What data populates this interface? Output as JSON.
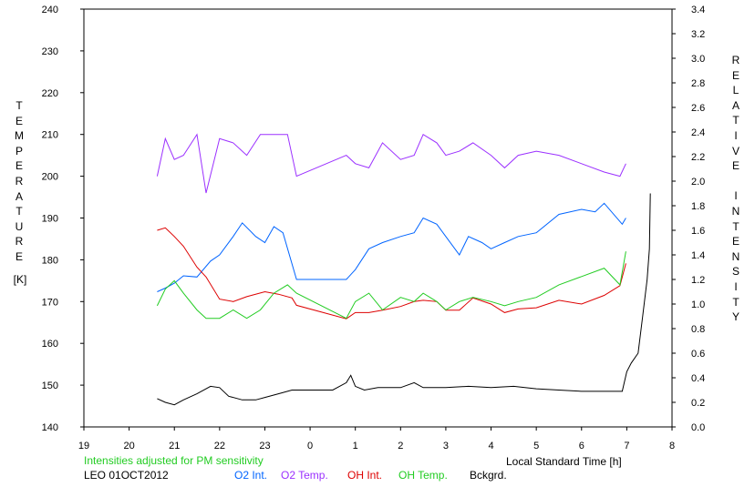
{
  "chart_data": {
    "type": "line",
    "title": "",
    "xlabel": "Local Standard Time [h]",
    "ylabel_left": "TEMPERATURE",
    "ylabel_left_unit": "[K]",
    "ylabel_right": "RELATIVE INTENSITY",
    "x_ticks": [
      "19",
      "20",
      "21",
      "22",
      "23",
      "0",
      "1",
      "2",
      "3",
      "4",
      "5",
      "6",
      "7",
      "8"
    ],
    "xlim_hours_since_19": [
      0,
      13
    ],
    "ylim_left": [
      140,
      240
    ],
    "y_ticks_left": [
      140,
      150,
      160,
      170,
      180,
      190,
      200,
      210,
      220,
      230,
      240
    ],
    "ylim_right": [
      0.0,
      3.4
    ],
    "y_ticks_right": [
      "0.0",
      "0.2",
      "0.4",
      "0.6",
      "0.8",
      "1.0",
      "1.2",
      "1.4",
      "1.6",
      "1.8",
      "2.0",
      "2.2",
      "2.4",
      "2.6",
      "2.8",
      "3.0",
      "3.2",
      "3.4"
    ],
    "series": [
      {
        "name": "O2 Int.",
        "color": "#0064ff",
        "axis": "right",
        "points": [
          [
            1.62,
            1.1
          ],
          [
            1.8,
            1.13
          ],
          [
            2.0,
            1.17
          ],
          [
            2.2,
            1.23
          ],
          [
            2.5,
            1.22
          ],
          [
            2.8,
            1.35
          ],
          [
            3.0,
            1.4
          ],
          [
            3.3,
            1.55
          ],
          [
            3.5,
            1.66
          ],
          [
            3.8,
            1.55
          ],
          [
            4.0,
            1.5
          ],
          [
            4.2,
            1.63
          ],
          [
            4.4,
            1.58
          ],
          [
            4.7,
            1.2
          ],
          [
            5.8,
            1.2
          ],
          [
            6.0,
            1.28
          ],
          [
            6.3,
            1.45
          ],
          [
            6.6,
            1.5
          ],
          [
            7.0,
            1.55
          ],
          [
            7.3,
            1.58
          ],
          [
            7.5,
            1.7
          ],
          [
            7.8,
            1.65
          ],
          [
            8.0,
            1.55
          ],
          [
            8.3,
            1.4
          ],
          [
            8.5,
            1.55
          ],
          [
            8.8,
            1.5
          ],
          [
            9.0,
            1.45
          ],
          [
            9.3,
            1.5
          ],
          [
            9.6,
            1.55
          ],
          [
            10.0,
            1.58
          ],
          [
            10.5,
            1.73
          ],
          [
            11.0,
            1.77
          ],
          [
            11.3,
            1.75
          ],
          [
            11.5,
            1.82
          ],
          [
            11.9,
            1.65
          ],
          [
            11.98,
            1.7
          ]
        ]
      },
      {
        "name": "O2 Temp.",
        "color": "#9b30ff",
        "axis": "left",
        "points": [
          [
            1.62,
            200
          ],
          [
            1.8,
            209
          ],
          [
            2.0,
            204
          ],
          [
            2.2,
            205
          ],
          [
            2.5,
            210
          ],
          [
            2.7,
            196
          ],
          [
            3.0,
            209
          ],
          [
            3.3,
            208
          ],
          [
            3.6,
            205
          ],
          [
            3.9,
            210
          ],
          [
            4.2,
            210
          ],
          [
            4.5,
            210
          ],
          [
            4.7,
            200
          ],
          [
            5.8,
            205
          ],
          [
            6.0,
            203
          ],
          [
            6.3,
            202
          ],
          [
            6.6,
            208
          ],
          [
            7.0,
            204
          ],
          [
            7.3,
            205
          ],
          [
            7.5,
            210
          ],
          [
            7.8,
            208
          ],
          [
            8.0,
            205
          ],
          [
            8.3,
            206
          ],
          [
            8.6,
            208
          ],
          [
            9.0,
            205
          ],
          [
            9.3,
            202
          ],
          [
            9.6,
            205
          ],
          [
            10.0,
            206
          ],
          [
            10.5,
            205
          ],
          [
            11.0,
            203
          ],
          [
            11.5,
            201
          ],
          [
            11.85,
            200
          ],
          [
            11.98,
            203
          ]
        ]
      },
      {
        "name": "OH Int.",
        "color": "#dd0000",
        "axis": "right",
        "points": [
          [
            1.62,
            1.6
          ],
          [
            1.8,
            1.62
          ],
          [
            2.0,
            1.55
          ],
          [
            2.2,
            1.47
          ],
          [
            2.5,
            1.3
          ],
          [
            2.7,
            1.22
          ],
          [
            3.0,
            1.04
          ],
          [
            3.3,
            1.02
          ],
          [
            3.6,
            1.06
          ],
          [
            4.0,
            1.1
          ],
          [
            4.3,
            1.08
          ],
          [
            4.6,
            1.05
          ],
          [
            4.7,
            0.99
          ],
          [
            5.8,
            0.88
          ],
          [
            6.0,
            0.93
          ],
          [
            6.3,
            0.93
          ],
          [
            6.6,
            0.95
          ],
          [
            7.0,
            0.98
          ],
          [
            7.3,
            1.02
          ],
          [
            7.5,
            1.03
          ],
          [
            7.8,
            1.02
          ],
          [
            8.0,
            0.95
          ],
          [
            8.3,
            0.95
          ],
          [
            8.6,
            1.05
          ],
          [
            9.0,
            1.0
          ],
          [
            9.3,
            0.93
          ],
          [
            9.6,
            0.96
          ],
          [
            10.0,
            0.97
          ],
          [
            10.5,
            1.03
          ],
          [
            11.0,
            1.0
          ],
          [
            11.5,
            1.07
          ],
          [
            11.85,
            1.15
          ],
          [
            11.98,
            1.33
          ]
        ]
      },
      {
        "name": "OH Temp.",
        "color": "#22cc22",
        "axis": "left",
        "points": [
          [
            1.62,
            169
          ],
          [
            1.8,
            173
          ],
          [
            2.0,
            175
          ],
          [
            2.2,
            172
          ],
          [
            2.5,
            168
          ],
          [
            2.7,
            166
          ],
          [
            3.0,
            166
          ],
          [
            3.3,
            168
          ],
          [
            3.6,
            166
          ],
          [
            3.9,
            168
          ],
          [
            4.2,
            172
          ],
          [
            4.5,
            174
          ],
          [
            4.7,
            172
          ],
          [
            5.8,
            166
          ],
          [
            6.0,
            170
          ],
          [
            6.3,
            172
          ],
          [
            6.6,
            168
          ],
          [
            7.0,
            171
          ],
          [
            7.3,
            170
          ],
          [
            7.5,
            172
          ],
          [
            7.8,
            170
          ],
          [
            8.0,
            168
          ],
          [
            8.3,
            170
          ],
          [
            8.6,
            171
          ],
          [
            9.0,
            170
          ],
          [
            9.3,
            169
          ],
          [
            9.6,
            170
          ],
          [
            10.0,
            171
          ],
          [
            10.5,
            174
          ],
          [
            11.0,
            176
          ],
          [
            11.5,
            178
          ],
          [
            11.85,
            174
          ],
          [
            11.98,
            182
          ]
        ]
      },
      {
        "name": "Bckgrd.",
        "color": "#000000",
        "axis": "right",
        "points": [
          [
            1.62,
            0.23
          ],
          [
            1.8,
            0.2
          ],
          [
            2.0,
            0.18
          ],
          [
            2.2,
            0.22
          ],
          [
            2.5,
            0.27
          ],
          [
            2.8,
            0.33
          ],
          [
            3.0,
            0.32
          ],
          [
            3.2,
            0.25
          ],
          [
            3.5,
            0.22
          ],
          [
            3.8,
            0.22
          ],
          [
            4.0,
            0.24
          ],
          [
            4.3,
            0.27
          ],
          [
            4.6,
            0.3
          ],
          [
            4.9,
            0.3
          ],
          [
            5.2,
            0.3
          ],
          [
            5.5,
            0.3
          ],
          [
            5.8,
            0.36
          ],
          [
            5.9,
            0.42
          ],
          [
            6.0,
            0.33
          ],
          [
            6.2,
            0.3
          ],
          [
            6.5,
            0.32
          ],
          [
            7.0,
            0.32
          ],
          [
            7.3,
            0.36
          ],
          [
            7.5,
            0.32
          ],
          [
            8.0,
            0.32
          ],
          [
            8.5,
            0.33
          ],
          [
            9.0,
            0.32
          ],
          [
            9.5,
            0.33
          ],
          [
            10.0,
            0.31
          ],
          [
            10.5,
            0.3
          ],
          [
            11.0,
            0.29
          ],
          [
            11.5,
            0.29
          ],
          [
            11.9,
            0.29
          ],
          [
            12.0,
            0.45
          ],
          [
            12.1,
            0.52
          ],
          [
            12.25,
            0.6
          ],
          [
            12.35,
            0.9
          ],
          [
            12.45,
            1.2
          ],
          [
            12.5,
            1.45
          ],
          [
            12.52,
            1.9
          ]
        ]
      }
    ]
  },
  "footer": {
    "note": "Intensities adjusted for PM sensitivity",
    "note_color": "#22cc22",
    "station": "LEO 01OCT2012",
    "legend": [
      {
        "label": "O2 Int.",
        "color": "#0064ff"
      },
      {
        "label": "O2 Temp.",
        "color": "#9b30ff"
      },
      {
        "label": "OH Int.",
        "color": "#dd0000"
      },
      {
        "label": "OH Temp.",
        "color": "#22cc22"
      },
      {
        "label": "Bckgrd.",
        "color": "#000000"
      }
    ]
  }
}
